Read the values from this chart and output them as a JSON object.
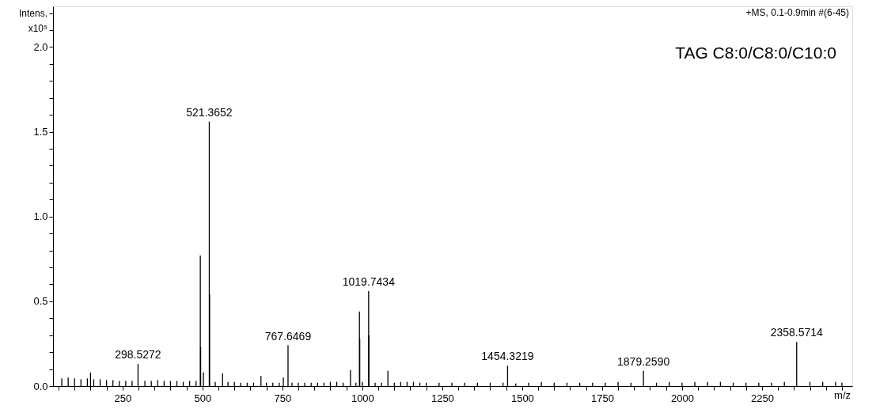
{
  "chart_data": {
    "type": "bar",
    "xlabel": "m/z",
    "ylabel": "Intens. x10⁵",
    "x": [
      60,
      80,
      100,
      120,
      140,
      150,
      160,
      180,
      200,
      220,
      240,
      260,
      280,
      298.5272,
      320,
      340,
      360,
      380,
      400,
      420,
      440,
      460,
      480,
      493.3,
      494.3,
      503,
      521.3652,
      522.37,
      540,
      563,
      580,
      600,
      620,
      640,
      660,
      683,
      700,
      720,
      740,
      753,
      767.6469,
      780,
      800,
      820,
      840,
      860,
      880,
      900,
      920,
      940,
      963,
      980,
      991,
      992,
      1000,
      1019.7434,
      1020.74,
      1040,
      1060,
      1080,
      1100,
      1120,
      1140,
      1160,
      1180,
      1200,
      1240,
      1280,
      1320,
      1360,
      1400,
      1440,
      1454.3219,
      1480,
      1520,
      1560,
      1600,
      1640,
      1680,
      1720,
      1760,
      1800,
      1840,
      1879.259,
      1920,
      1960,
      2000,
      2040,
      2080,
      2120,
      2160,
      2200,
      2240,
      2280,
      2320,
      2358.5714,
      2400,
      2440,
      2480,
      2500
    ],
    "series": [
      {
        "color": "#000000",
        "values": [
          0.045,
          0.05,
          0.045,
          0.04,
          0.045,
          0.08,
          0.04,
          0.04,
          0.035,
          0.035,
          0.03,
          0.03,
          0.03,
          0.13,
          0.03,
          0.03,
          0.035,
          0.03,
          0.03,
          0.03,
          0.025,
          0.03,
          0.03,
          0.77,
          0.23,
          0.08,
          1.56,
          0.54,
          0.025,
          0.075,
          0.025,
          0.025,
          0.02,
          0.02,
          0.02,
          0.06,
          0.02,
          0.02,
          0.02,
          0.05,
          0.24,
          0.02,
          0.02,
          0.02,
          0.02,
          0.02,
          0.02,
          0.025,
          0.025,
          0.02,
          0.095,
          0.02,
          0.44,
          0.28,
          0.025,
          0.56,
          0.3,
          0.02,
          0.02,
          0.09,
          0.02,
          0.025,
          0.025,
          0.025,
          0.02,
          0.02,
          0.02,
          0.02,
          0.02,
          0.02,
          0.02,
          0.02,
          0.12,
          0.015,
          0.02,
          0.025,
          0.02,
          0.02,
          0.02,
          0.02,
          0.02,
          0.025,
          0.02,
          0.09,
          0.02,
          0.025,
          0.02,
          0.025,
          0.025,
          0.025,
          0.02,
          0.02,
          0.02,
          0.02,
          0.025,
          0.26,
          0.025,
          0.025,
          0.025,
          0.02
        ]
      }
    ],
    "xlim": [
      45,
      2520
    ],
    "xticks": [
      250,
      500,
      750,
      1000,
      1250,
      1500,
      1750,
      2000,
      2250,
      {
        "value": 50,
        "label": null
      },
      {
        "value": 100,
        "label": null
      },
      {
        "value": 150,
        "label": null
      },
      {
        "value": 200,
        "label": null
      },
      {
        "value": 300,
        "label": null
      },
      {
        "value": 350,
        "label": null
      },
      {
        "value": 400,
        "label": null
      },
      {
        "value": 450,
        "label": null
      },
      {
        "value": 550,
        "label": null
      },
      {
        "value": 600,
        "label": null
      },
      {
        "value": 650,
        "label": null
      },
      {
        "value": 700,
        "label": null
      },
      {
        "value": 800,
        "label": null
      },
      {
        "value": 850,
        "label": null
      },
      {
        "value": 900,
        "label": null
      },
      {
        "value": 950,
        "label": null
      },
      {
        "value": 1050,
        "label": null
      },
      {
        "value": 1100,
        "label": null
      },
      {
        "value": 1150,
        "label": null
      },
      {
        "value": 1200,
        "label": null
      },
      {
        "value": 1300,
        "label": null
      },
      {
        "value": 1350,
        "label": null
      },
      {
        "value": 1400,
        "label": null
      },
      {
        "value": 1450,
        "label": null
      },
      {
        "value": 1550,
        "label": null
      },
      {
        "value": 1600,
        "label": null
      },
      {
        "value": 1650,
        "label": null
      },
      {
        "value": 1700,
        "label": null
      },
      {
        "value": 1800,
        "label": null
      },
      {
        "value": 1850,
        "label": null
      },
      {
        "value": 1900,
        "label": null
      },
      {
        "value": 1950,
        "label": null
      },
      {
        "value": 2050,
        "label": null
      },
      {
        "value": 2100,
        "label": null
      },
      {
        "value": 2150,
        "label": null
      },
      {
        "value": 2200,
        "label": null
      },
      {
        "value": 2300,
        "label": null
      },
      {
        "value": 2350,
        "label": null
      },
      {
        "value": 2400,
        "label": null
      },
      {
        "value": 2450,
        "label": null
      },
      {
        "value": 2500,
        "label": null
      }
    ],
    "ylim": [
      0,
      2.24
    ],
    "yticks": [
      {
        "value": 0,
        "label": "0.0"
      },
      {
        "value": 0.5,
        "label": "0.5"
      },
      {
        "value": 1,
        "label": "1.0"
      },
      {
        "value": 1.5,
        "label": "1.5"
      },
      {
        "value": 2,
        "label": "2.0"
      },
      {
        "value": 0.1,
        "label": null
      },
      {
        "value": 0.2,
        "label": null
      },
      {
        "value": 0.3,
        "label": null
      },
      {
        "value": 0.4,
        "label": null
      },
      {
        "value": 0.6,
        "label": null
      },
      {
        "value": 0.7,
        "label": null
      },
      {
        "value": 0.8,
        "label": null
      },
      {
        "value": 0.9,
        "label": null
      },
      {
        "value": 1.1,
        "label": null
      },
      {
        "value": 1.2,
        "label": null
      },
      {
        "value": 1.3,
        "label": null
      },
      {
        "value": 1.4,
        "label": null
      },
      {
        "value": 1.6,
        "label": null
      },
      {
        "value": 1.7,
        "label": null
      },
      {
        "value": 1.8,
        "label": null
      },
      {
        "value": 1.9,
        "label": null
      },
      {
        "value": 2.1,
        "label": null
      },
      {
        "value": 2.2,
        "label": null
      }
    ],
    "grid": false,
    "annotations": [
      "+MS, 0.1-0.9min #(6-45)",
      "TAG C8:0/C8:0/C10:0",
      {
        "text": "298.5272",
        "x": 298.5272,
        "y": 0.13
      },
      {
        "text": "521.3652",
        "x": 521.3652,
        "y": 1.56
      },
      {
        "text": "767.6469",
        "x": 767.6469,
        "y": 0.24
      },
      {
        "text": "1019.7434",
        "x": 1019.7434,
        "y": 0.56
      },
      {
        "text": "1454.3219",
        "x": 1454.3219,
        "y": 0.12
      },
      {
        "text": "1879.2590",
        "x": 1879.259,
        "y": 0.09
      },
      {
        "text": "2358.5714",
        "x": 2358.5714,
        "y": 0.26
      }
    ]
  }
}
